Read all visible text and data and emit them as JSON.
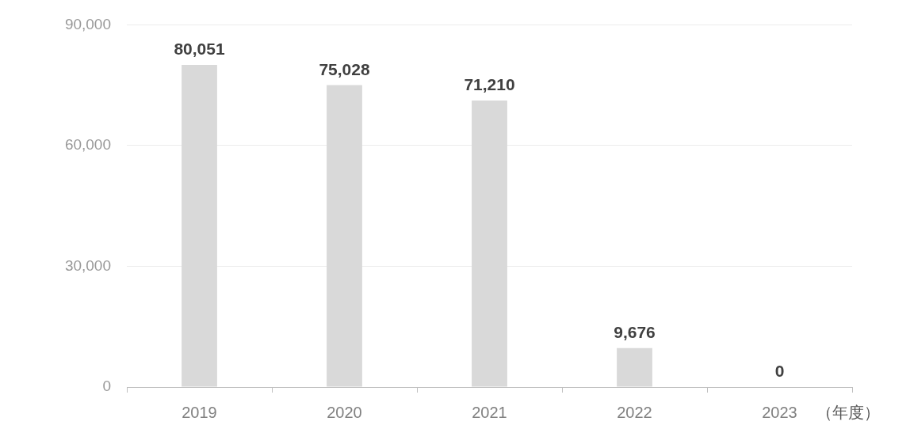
{
  "chart_data": {
    "type": "bar",
    "xlabel": "（年度）",
    "categories": [
      "2019",
      "2020",
      "2021",
      "2022",
      "2023"
    ],
    "values": [
      80051,
      75028,
      71210,
      9676,
      0
    ],
    "value_labels": [
      "80,051",
      "75,028",
      "71,210",
      "9,676",
      "0"
    ],
    "color": "#d9d9d9",
    "ylim": [
      0,
      90000
    ],
    "yticks": [
      {
        "value": 0,
        "label": "0"
      },
      {
        "value": 30000,
        "label": "30,000"
      },
      {
        "value": 60000,
        "label": "60,000"
      },
      {
        "value": 90000,
        "label": "90,000"
      }
    ],
    "grid": "y",
    "legend": false
  }
}
